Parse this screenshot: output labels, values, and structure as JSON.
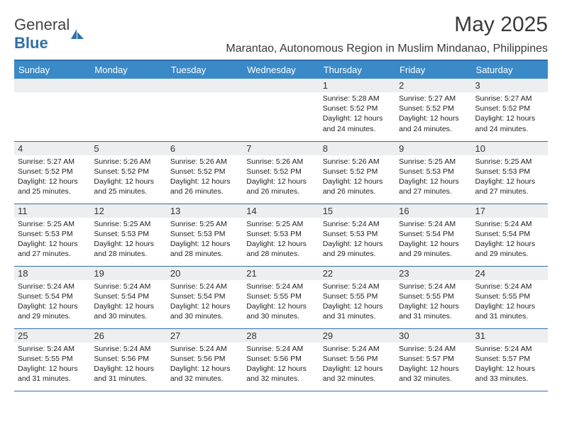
{
  "logo": {
    "text_a": "General",
    "text_b": "Blue"
  },
  "title": "May 2025",
  "subtitle": "Marantao, Autonomous Region in Muslim Mindanao, Philippines",
  "colors": {
    "header_bg": "#3a8ac8",
    "header_text": "#ffffff",
    "rule": "#2f6fa7",
    "daynum_bg": "#eceeef",
    "body_text": "#222222",
    "title_text": "#3a3a3a"
  },
  "typography": {
    "title_fontsize": 30,
    "subtitle_fontsize": 16,
    "dayhead_fontsize": 13,
    "body_fontsize": 10.5
  },
  "weekdays": [
    "Sunday",
    "Monday",
    "Tuesday",
    "Wednesday",
    "Thursday",
    "Friday",
    "Saturday"
  ],
  "weeks": [
    [
      null,
      null,
      null,
      null,
      {
        "n": "1",
        "sr": "5:28 AM",
        "ss": "5:52 PM",
        "dl": "12 hours and 24 minutes."
      },
      {
        "n": "2",
        "sr": "5:27 AM",
        "ss": "5:52 PM",
        "dl": "12 hours and 24 minutes."
      },
      {
        "n": "3",
        "sr": "5:27 AM",
        "ss": "5:52 PM",
        "dl": "12 hours and 24 minutes."
      }
    ],
    [
      {
        "n": "4",
        "sr": "5:27 AM",
        "ss": "5:52 PM",
        "dl": "12 hours and 25 minutes."
      },
      {
        "n": "5",
        "sr": "5:26 AM",
        "ss": "5:52 PM",
        "dl": "12 hours and 25 minutes."
      },
      {
        "n": "6",
        "sr": "5:26 AM",
        "ss": "5:52 PM",
        "dl": "12 hours and 26 minutes."
      },
      {
        "n": "7",
        "sr": "5:26 AM",
        "ss": "5:52 PM",
        "dl": "12 hours and 26 minutes."
      },
      {
        "n": "8",
        "sr": "5:26 AM",
        "ss": "5:52 PM",
        "dl": "12 hours and 26 minutes."
      },
      {
        "n": "9",
        "sr": "5:25 AM",
        "ss": "5:53 PM",
        "dl": "12 hours and 27 minutes."
      },
      {
        "n": "10",
        "sr": "5:25 AM",
        "ss": "5:53 PM",
        "dl": "12 hours and 27 minutes."
      }
    ],
    [
      {
        "n": "11",
        "sr": "5:25 AM",
        "ss": "5:53 PM",
        "dl": "12 hours and 27 minutes."
      },
      {
        "n": "12",
        "sr": "5:25 AM",
        "ss": "5:53 PM",
        "dl": "12 hours and 28 minutes."
      },
      {
        "n": "13",
        "sr": "5:25 AM",
        "ss": "5:53 PM",
        "dl": "12 hours and 28 minutes."
      },
      {
        "n": "14",
        "sr": "5:25 AM",
        "ss": "5:53 PM",
        "dl": "12 hours and 28 minutes."
      },
      {
        "n": "15",
        "sr": "5:24 AM",
        "ss": "5:53 PM",
        "dl": "12 hours and 29 minutes."
      },
      {
        "n": "16",
        "sr": "5:24 AM",
        "ss": "5:54 PM",
        "dl": "12 hours and 29 minutes."
      },
      {
        "n": "17",
        "sr": "5:24 AM",
        "ss": "5:54 PM",
        "dl": "12 hours and 29 minutes."
      }
    ],
    [
      {
        "n": "18",
        "sr": "5:24 AM",
        "ss": "5:54 PM",
        "dl": "12 hours and 29 minutes."
      },
      {
        "n": "19",
        "sr": "5:24 AM",
        "ss": "5:54 PM",
        "dl": "12 hours and 30 minutes."
      },
      {
        "n": "20",
        "sr": "5:24 AM",
        "ss": "5:54 PM",
        "dl": "12 hours and 30 minutes."
      },
      {
        "n": "21",
        "sr": "5:24 AM",
        "ss": "5:55 PM",
        "dl": "12 hours and 30 minutes."
      },
      {
        "n": "22",
        "sr": "5:24 AM",
        "ss": "5:55 PM",
        "dl": "12 hours and 31 minutes."
      },
      {
        "n": "23",
        "sr": "5:24 AM",
        "ss": "5:55 PM",
        "dl": "12 hours and 31 minutes."
      },
      {
        "n": "24",
        "sr": "5:24 AM",
        "ss": "5:55 PM",
        "dl": "12 hours and 31 minutes."
      }
    ],
    [
      {
        "n": "25",
        "sr": "5:24 AM",
        "ss": "5:55 PM",
        "dl": "12 hours and 31 minutes."
      },
      {
        "n": "26",
        "sr": "5:24 AM",
        "ss": "5:56 PM",
        "dl": "12 hours and 31 minutes."
      },
      {
        "n": "27",
        "sr": "5:24 AM",
        "ss": "5:56 PM",
        "dl": "12 hours and 32 minutes."
      },
      {
        "n": "28",
        "sr": "5:24 AM",
        "ss": "5:56 PM",
        "dl": "12 hours and 32 minutes."
      },
      {
        "n": "29",
        "sr": "5:24 AM",
        "ss": "5:56 PM",
        "dl": "12 hours and 32 minutes."
      },
      {
        "n": "30",
        "sr": "5:24 AM",
        "ss": "5:57 PM",
        "dl": "12 hours and 32 minutes."
      },
      {
        "n": "31",
        "sr": "5:24 AM",
        "ss": "5:57 PM",
        "dl": "12 hours and 33 minutes."
      }
    ]
  ],
  "labels": {
    "sunrise": "Sunrise:",
    "sunset": "Sunset:",
    "daylight": "Daylight:"
  }
}
